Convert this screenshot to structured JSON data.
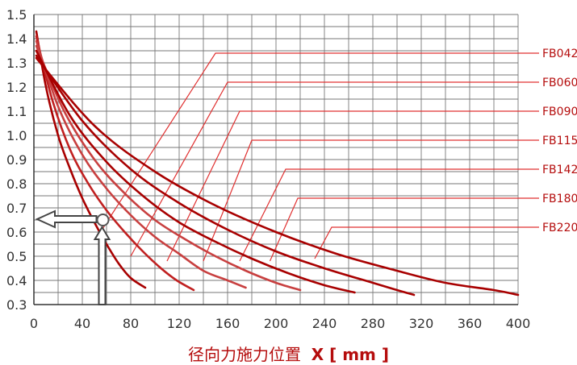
{
  "chart_data": {
    "type": "line",
    "xlabel": "径向力施力位置",
    "xlabel_unit": "X [ mm ]",
    "xlim": [
      0,
      400
    ],
    "ylim": [
      0.3,
      1.5
    ],
    "x_ticks": [
      "0",
      "40",
      "80",
      "120",
      "160",
      "200",
      "240",
      "280",
      "320",
      "360",
      "400"
    ],
    "y_ticks": [
      "0.3",
      "0.4",
      "0.5",
      "0.6",
      "0.7",
      "0.8",
      "0.9",
      "1.0",
      "1.1",
      "1.2",
      "1.3",
      "1.4",
      "1.5"
    ],
    "grid": true,
    "legend_placement": "right",
    "colors": {
      "axis": "#333333",
      "grid": "#777777",
      "leader": "#e03030",
      "accent": "#b50d0d"
    },
    "series": [
      {
        "name": "FB042",
        "color": "#a80000",
        "points": [
          [
            2,
            1.43
          ],
          [
            10,
            1.2
          ],
          [
            20,
            1.0
          ],
          [
            30,
            0.86
          ],
          [
            40,
            0.74
          ],
          [
            50,
            0.64
          ],
          [
            60,
            0.55
          ],
          [
            70,
            0.47
          ],
          [
            80,
            0.41
          ],
          [
            92,
            0.37
          ]
        ]
      },
      {
        "name": "FB060",
        "color": "#c02020",
        "points": [
          [
            2,
            1.41
          ],
          [
            15,
            1.15
          ],
          [
            30,
            0.94
          ],
          [
            45,
            0.8
          ],
          [
            60,
            0.69
          ],
          [
            75,
            0.6
          ],
          [
            90,
            0.52
          ],
          [
            105,
            0.45
          ],
          [
            118,
            0.4
          ],
          [
            132,
            0.36
          ]
        ]
      },
      {
        "name": "FB090",
        "color": "#c84040",
        "points": [
          [
            2,
            1.39
          ],
          [
            20,
            1.12
          ],
          [
            40,
            0.92
          ],
          [
            60,
            0.78
          ],
          [
            80,
            0.67
          ],
          [
            100,
            0.58
          ],
          [
            120,
            0.51
          ],
          [
            140,
            0.44
          ],
          [
            160,
            0.4
          ],
          [
            175,
            0.37
          ]
        ]
      },
      {
        "name": "FB115",
        "color": "#c84040",
        "points": [
          [
            2,
            1.37
          ],
          [
            25,
            1.1
          ],
          [
            50,
            0.9
          ],
          [
            75,
            0.76
          ],
          [
            100,
            0.65
          ],
          [
            125,
            0.57
          ],
          [
            150,
            0.5
          ],
          [
            175,
            0.44
          ],
          [
            200,
            0.39
          ],
          [
            220,
            0.36
          ]
        ]
      },
      {
        "name": "FB142",
        "color": "#a80000",
        "points": [
          [
            2,
            1.35
          ],
          [
            30,
            1.08
          ],
          [
            60,
            0.89
          ],
          [
            90,
            0.75
          ],
          [
            120,
            0.64
          ],
          [
            150,
            0.56
          ],
          [
            180,
            0.49
          ],
          [
            210,
            0.43
          ],
          [
            240,
            0.38
          ],
          [
            265,
            0.35
          ]
        ]
      },
      {
        "name": "FB180",
        "color": "#a80000",
        "points": [
          [
            2,
            1.33
          ],
          [
            40,
            1.06
          ],
          [
            80,
            0.86
          ],
          [
            120,
            0.72
          ],
          [
            160,
            0.61
          ],
          [
            200,
            0.52
          ],
          [
            240,
            0.45
          ],
          [
            280,
            0.39
          ],
          [
            300,
            0.36
          ],
          [
            314,
            0.34
          ]
        ]
      },
      {
        "name": "FB220",
        "color": "#a80000",
        "points": [
          [
            2,
            1.32
          ],
          [
            50,
            1.04
          ],
          [
            100,
            0.85
          ],
          [
            150,
            0.71
          ],
          [
            200,
            0.6
          ],
          [
            250,
            0.51
          ],
          [
            300,
            0.44
          ],
          [
            340,
            0.39
          ],
          [
            380,
            0.36
          ],
          [
            400,
            0.34
          ]
        ]
      }
    ],
    "leaders": [
      {
        "series": "FB042",
        "from": [
          55,
          0.6
        ],
        "bend": [
          150,
          1.34
        ]
      },
      {
        "series": "FB060",
        "from": [
          80,
          0.5
        ],
        "bend": [
          160,
          1.22
        ]
      },
      {
        "series": "FB090",
        "from": [
          110,
          0.48
        ],
        "bend": [
          170,
          1.1
        ]
      },
      {
        "series": "FB115",
        "from": [
          140,
          0.48
        ],
        "bend": [
          180,
          0.98
        ]
      },
      {
        "series": "FB142",
        "from": [
          170,
          0.48
        ],
        "bend": [
          208,
          0.86
        ]
      },
      {
        "series": "FB180",
        "from": [
          195,
          0.48
        ],
        "bend": [
          218,
          0.74
        ]
      },
      {
        "series": "FB220",
        "from": [
          232,
          0.49
        ],
        "bend": [
          246,
          0.62
        ]
      }
    ],
    "example": {
      "point": [
        57,
        0.65
      ],
      "vertical_from": 0.3,
      "horizontal_to": 0
    }
  }
}
